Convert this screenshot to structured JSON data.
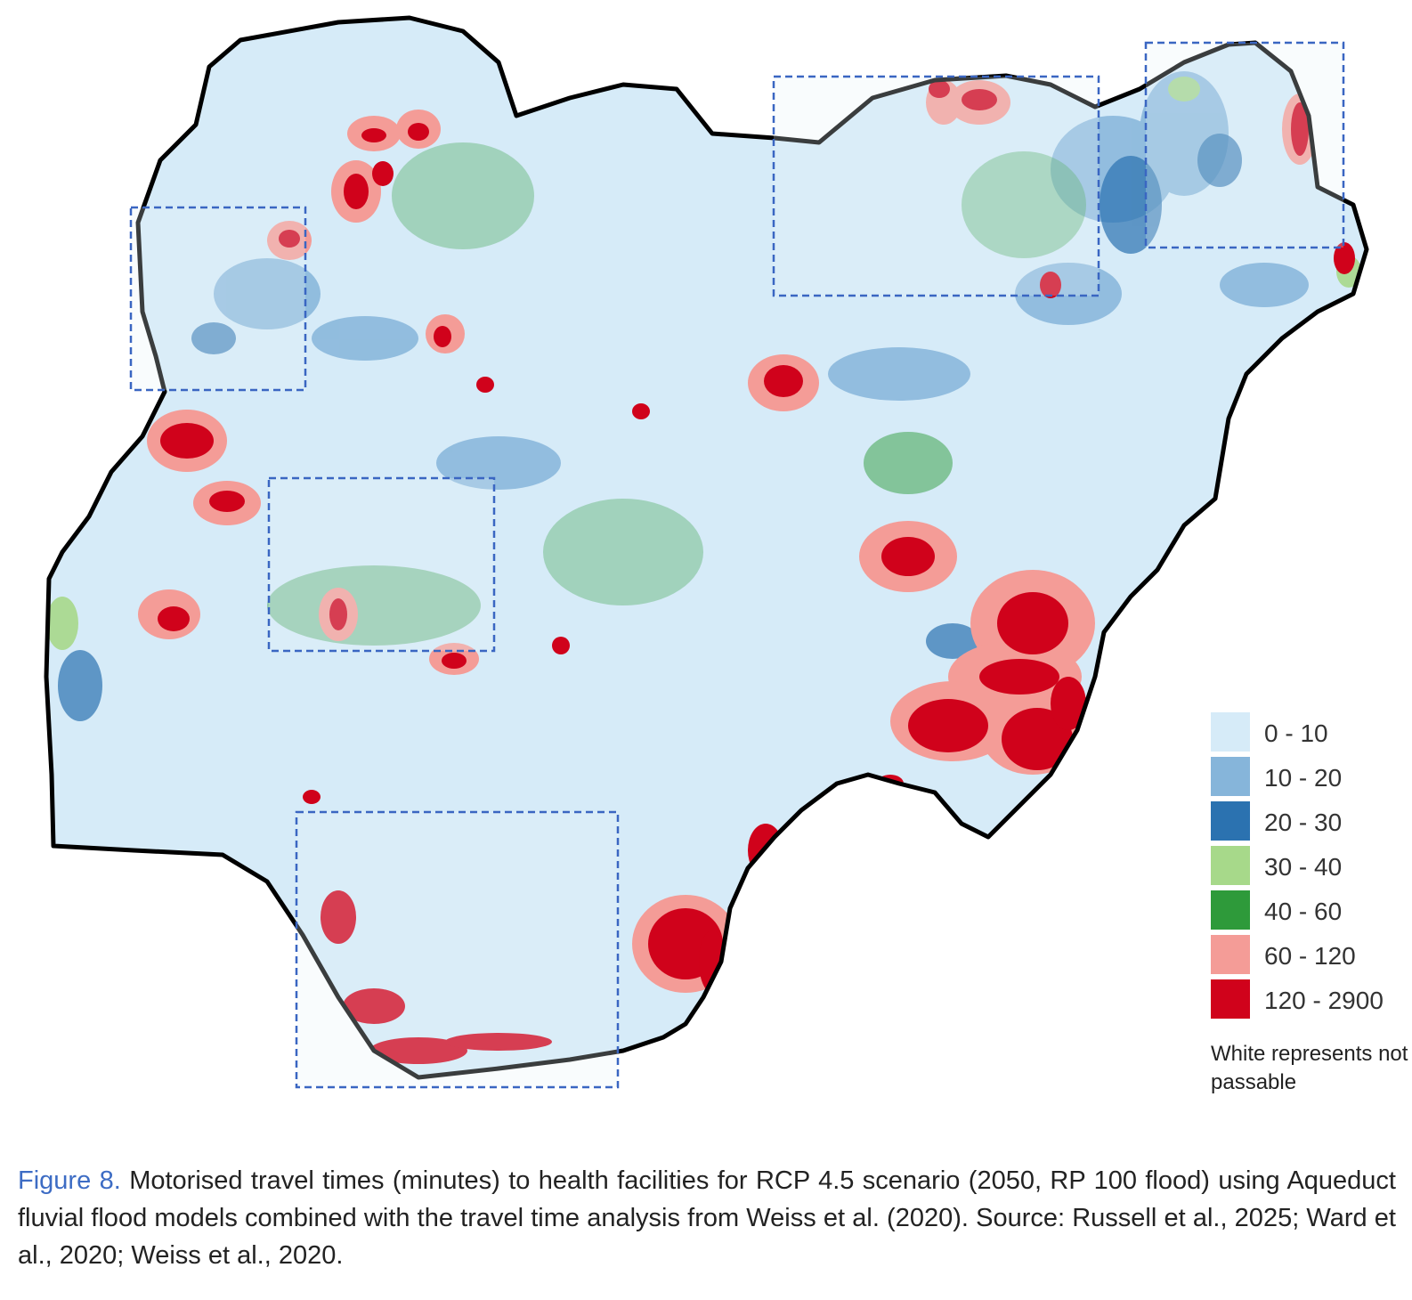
{
  "legend": {
    "classes": [
      {
        "label": "0 - 10",
        "color": "#d6ebf8"
      },
      {
        "label": "10 - 20",
        "color": "#86b5da"
      },
      {
        "label": "20 - 30",
        "color": "#2b72b0"
      },
      {
        "label": "30 - 40",
        "color": "#a7d98a"
      },
      {
        "label": "40 - 60",
        "color": "#2e9a3a"
      },
      {
        "label": "60 - 120",
        "color": "#f49c97"
      },
      {
        "label": "120 - 2900",
        "color": "#d0021b"
      }
    ],
    "note": "White represents not passable"
  },
  "caption": {
    "label": "Figure 8.",
    "text": "Motorised travel times (minutes) to health facilities for RCP 4.5 scenario (2050, RP 100 flood) using Aqueduct fluvial flood models combined with the travel time analysis from Weiss et al. (2020). Source: Russell et al., 2025; Ward et al., 2020; Weiss et al., 2020."
  },
  "colors": {
    "boundary": "#000000",
    "highlight_box": "#3a66c2",
    "caption_label": "#3d6cc4"
  }
}
